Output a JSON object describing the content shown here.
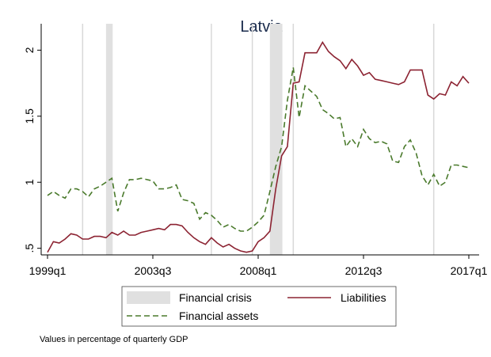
{
  "chart_data": {
    "type": "line",
    "title": "Latvia",
    "categories": [
      "1999q1",
      null,
      null,
      null,
      null,
      null,
      null,
      null,
      null,
      null,
      null,
      null,
      null,
      null,
      null,
      null,
      null,
      null,
      "2003q3",
      null,
      null,
      null,
      null,
      null,
      null,
      null,
      null,
      null,
      null,
      null,
      null,
      null,
      null,
      null,
      null,
      null,
      "2008q1",
      null,
      null,
      null,
      null,
      null,
      null,
      null,
      null,
      null,
      null,
      null,
      null,
      null,
      null,
      null,
      null,
      null,
      "2012q3",
      null,
      null,
      null,
      null,
      null,
      null,
      null,
      null,
      null,
      null,
      null,
      null,
      null,
      null,
      null,
      null,
      null,
      "2017q1"
    ],
    "series": [
      {
        "name": "Liabilities",
        "color": "#8c2332",
        "dash": false,
        "values": [
          0.47,
          0.55,
          0.54,
          0.57,
          0.61,
          0.6,
          0.57,
          0.57,
          0.59,
          0.59,
          0.58,
          0.62,
          0.6,
          0.63,
          0.6,
          0.6,
          0.62,
          0.63,
          0.64,
          0.65,
          0.64,
          0.68,
          0.68,
          0.67,
          0.62,
          0.58,
          0.55,
          0.53,
          0.58,
          0.54,
          0.51,
          0.53,
          0.5,
          0.48,
          0.47,
          0.48,
          0.55,
          0.58,
          0.63,
          0.95,
          1.2,
          1.27,
          1.75,
          1.76,
          1.98,
          1.98,
          1.98,
          2.06,
          1.99,
          1.95,
          1.92,
          1.86,
          1.93,
          1.88,
          1.81,
          1.83,
          1.78,
          1.77,
          1.76,
          1.75,
          1.74,
          1.76,
          1.85,
          1.85,
          1.85,
          1.66,
          1.63,
          1.67,
          1.66,
          1.76,
          1.73,
          1.8,
          1.75
        ]
      },
      {
        "name": "Financial assets",
        "color": "#4a7a2c",
        "dash": true,
        "values": [
          0.9,
          0.93,
          0.9,
          0.88,
          0.95,
          0.95,
          0.93,
          0.89,
          0.95,
          0.97,
          1.0,
          1.03,
          0.78,
          0.92,
          1.02,
          1.02,
          1.03,
          1.02,
          1.01,
          0.95,
          0.95,
          0.96,
          0.98,
          0.87,
          0.86,
          0.84,
          0.72,
          0.77,
          0.75,
          0.71,
          0.66,
          0.68,
          0.65,
          0.63,
          0.63,
          0.66,
          0.7,
          0.75,
          0.93,
          1.12,
          1.27,
          1.62,
          1.87,
          1.49,
          1.73,
          1.69,
          1.65,
          1.55,
          1.52,
          1.48,
          1.49,
          1.27,
          1.33,
          1.27,
          1.4,
          1.33,
          1.3,
          1.31,
          1.29,
          1.16,
          1.15,
          1.27,
          1.32,
          1.22,
          1.05,
          0.98,
          1.06,
          0.97,
          1.0,
          1.13,
          1.13,
          1.12,
          1.11
        ]
      }
    ],
    "shaded": {
      "name": "Financial crisis",
      "color": "#e0e0e0",
      "periods": [
        [
          10,
          11
        ],
        [
          38,
          40
        ]
      ]
    },
    "xlines": [
      6,
      28,
      35,
      42,
      66
    ],
    "ylim": [
      0.45,
      2.2
    ],
    "yticks": [
      {
        "value": 0.5,
        "label": ".5"
      },
      1,
      1.5,
      2
    ],
    "note": "Values in percentage of quarterly GDP"
  }
}
